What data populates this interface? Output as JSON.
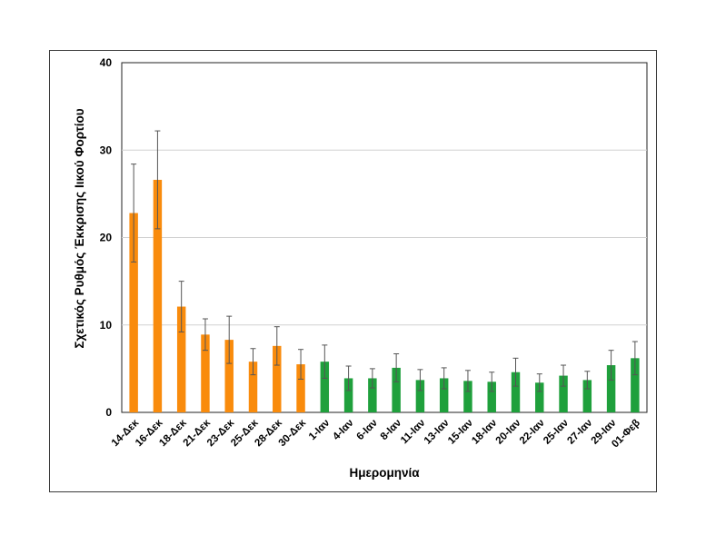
{
  "chart_data": {
    "type": "bar",
    "xlabel": "Ημερομηνία",
    "ylabel": "Σχετικός Ρυθμός Έκκρισης Ιικού Φορτίου",
    "ylim": [
      0,
      40
    ],
    "yticks": [
      0,
      10,
      20,
      30,
      40
    ],
    "grid": true,
    "categories": [
      "14-Δεκ",
      "16-Δεκ",
      "18-Δεκ",
      "21-Δεκ",
      "23-Δεκ",
      "25-Δεκ",
      "28-Δεκ",
      "30-Δεκ",
      "1-Ιαν",
      "4-Ιαν",
      "6-Ιαν",
      "8-Ιαν",
      "11-Ιαν",
      "13-Ιαν",
      "15-Ιαν",
      "18-Ιαν",
      "20-Ιαν",
      "22-Ιαν",
      "25-Ιαν",
      "27-Ιαν",
      "29-Ιαν",
      "01-Φεβ"
    ],
    "values": [
      22.8,
      26.6,
      12.1,
      8.9,
      8.3,
      5.8,
      7.6,
      5.5,
      5.8,
      3.9,
      3.9,
      5.1,
      3.7,
      3.9,
      3.6,
      3.5,
      4.6,
      3.4,
      4.2,
      3.7,
      5.4,
      6.2
    ],
    "error": [
      5.6,
      5.6,
      2.9,
      1.8,
      2.7,
      1.5,
      2.2,
      1.7,
      1.9,
      1.4,
      1.1,
      1.6,
      1.2,
      1.2,
      1.2,
      1.1,
      1.6,
      1.0,
      1.2,
      1.0,
      1.7,
      1.9
    ],
    "colors": [
      "#f98b0c",
      "#f98b0c",
      "#f98b0c",
      "#f98b0c",
      "#f98b0c",
      "#f98b0c",
      "#f98b0c",
      "#f98b0c",
      "#1fa03c",
      "#1fa03c",
      "#1fa03c",
      "#1fa03c",
      "#1fa03c",
      "#1fa03c",
      "#1fa03c",
      "#1fa03c",
      "#1fa03c",
      "#1fa03c",
      "#1fa03c",
      "#1fa03c",
      "#1fa03c",
      "#1fa03c"
    ]
  }
}
